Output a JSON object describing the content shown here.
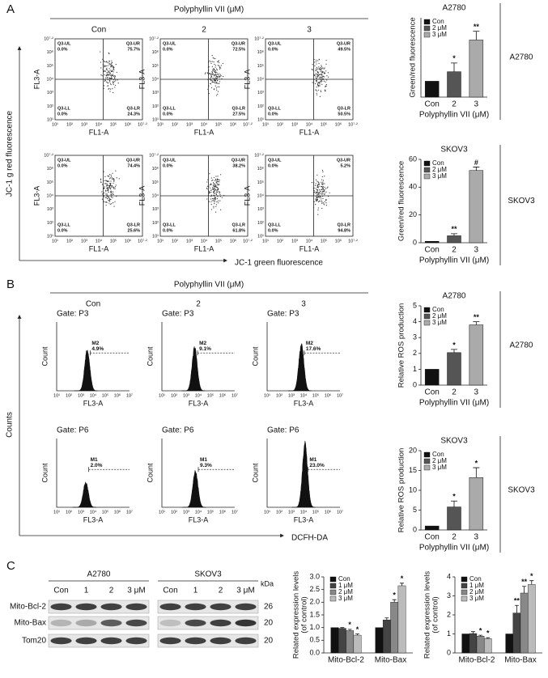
{
  "panel_a": {
    "label": "A",
    "header": "Polyphyllin VII (μM)",
    "columns": [
      "Con",
      "2",
      "3"
    ],
    "y_title": "JC-1 g red fluorescence",
    "x_title": "JC-1 green fluorescence",
    "x_axis_label": "FL1-A",
    "y_axis_label": "FL3-A",
    "axis_ticks": [
      "10¹",
      "10²",
      "10³",
      "10⁴",
      "10⁵",
      "10⁶",
      "10⁷·²"
    ],
    "quadrant_names": [
      "Q3-UL",
      "Q3-UR",
      "Q3-LL",
      "Q3-LR"
    ],
    "plots": [
      {
        "quadrants": [
          "0.0%",
          "75.7%",
          "0.0%",
          "24.3%"
        ]
      },
      {
        "quadrants": [
          "0.0%",
          "72.5%",
          "0.0%",
          "27.5%"
        ]
      },
      {
        "quadrants": [
          "0.0%",
          "49.5%",
          "0.0%",
          "50.5%"
        ]
      },
      {
        "quadrants": [
          "0.0%",
          "74.4%",
          "0.0%",
          "25.6%"
        ]
      },
      {
        "quadrants": [
          "0.0%",
          "38.2%",
          "0.0%",
          "61.8%"
        ]
      },
      {
        "quadrants": [
          "0.0%",
          "5.2%",
          "0.0%",
          "94.8%"
        ]
      }
    ],
    "charts": [
      {
        "type": "bar",
        "title": "A2780",
        "side_label": "A2780",
        "ylabel": [
          "Green/red fluorescence"
        ],
        "xlabel": "Polyphyllin VII (μM)",
        "categories": [
          "Con",
          "2",
          "3"
        ],
        "values": [
          1,
          1.6,
          3.6
        ],
        "errors": [
          null,
          0.55,
          0.55
        ],
        "significance": [
          null,
          "*",
          "**"
        ],
        "colors": [
          "#111111",
          "#555555",
          "#aaaaaa"
        ],
        "legend": [
          "Con",
          "2 μM",
          "3 μM"
        ],
        "ylim": [
          0,
          5
        ]
      },
      {
        "type": "bar",
        "title": "SKOV3",
        "side_label": "SKOV3",
        "ylabel": [
          "Green/red fluorescence"
        ],
        "xlabel": "Polyphyllin VII (μM)",
        "categories": [
          "Con",
          "2",
          "3"
        ],
        "values": [
          1,
          5,
          52
        ],
        "errors": [
          null,
          1.5,
          2.5
        ],
        "significance": [
          null,
          "**",
          "#"
        ],
        "colors": [
          "#111111",
          "#555555",
          "#aaaaaa"
        ],
        "legend": [
          "Con",
          "2 μM",
          "3 μM"
        ],
        "ylim": [
          0,
          60
        ],
        "yticks": [
          0,
          20,
          40,
          60
        ]
      }
    ]
  },
  "panel_b": {
    "label": "B",
    "header": "Polyphyllin VII (μM)",
    "columns": [
      "Con",
      "2",
      "3"
    ],
    "y_title": "Counts",
    "x_title": "DCFH-DA",
    "x_axis_label": "FL3-A",
    "y_axis_label": "Count",
    "axis_ticks": [
      "10¹",
      "10²",
      "10³",
      "10⁴",
      "10⁵",
      "10⁶",
      "10⁷"
    ],
    "plots": [
      {
        "gate": "Gate: P3",
        "marker": "M2",
        "percent": "4.9%"
      },
      {
        "gate": "Gate: P3",
        "marker": "M2",
        "percent": "9.1%"
      },
      {
        "gate": "Gate: P3",
        "marker": "M2",
        "percent": "17.6%"
      },
      {
        "gate": "Gate: P6",
        "marker": "M1",
        "percent": "2.0%"
      },
      {
        "gate": "Gate: P6",
        "marker": "M1",
        "percent": "9.3%"
      },
      {
        "gate": "Gate: P6",
        "marker": "M1",
        "percent": "23.0%"
      }
    ],
    "charts": [
      {
        "type": "bar",
        "title": "A2780",
        "side_label": "A2780",
        "ylabel": [
          "Relative ROS production"
        ],
        "xlabel": "Polyphyllin VII (μM)",
        "categories": [
          "Con",
          "2",
          "3"
        ],
        "values": [
          1,
          2.05,
          3.8
        ],
        "errors": [
          null,
          0.2,
          0.2
        ],
        "significance": [
          null,
          "*",
          "**"
        ],
        "colors": [
          "#111111",
          "#555555",
          "#aaaaaa"
        ],
        "legend": [
          "Con",
          "2 μM",
          "3 μM"
        ],
        "ylim": [
          0,
          5
        ],
        "yticks": [
          0,
          1,
          2,
          3,
          4,
          5
        ]
      },
      {
        "type": "bar",
        "title": "SKOV3",
        "side_label": "SKOV3",
        "ylabel": [
          "Relative ROS production"
        ],
        "xlabel": "Polyphyllin VII (μM)",
        "categories": [
          "Con",
          "2",
          "3"
        ],
        "values": [
          1,
          5.8,
          13.2
        ],
        "errors": [
          null,
          1.5,
          2.5
        ],
        "significance": [
          null,
          "*",
          "*"
        ],
        "colors": [
          "#111111",
          "#555555",
          "#aaaaaa"
        ],
        "legend": [
          "Con",
          "2 μM",
          "3 μM"
        ],
        "ylim": [
          0,
          20
        ],
        "yticks": [
          0,
          5,
          10,
          15,
          20
        ]
      }
    ]
  },
  "panel_c": {
    "label": "C",
    "blots": [
      {
        "title": "A2780",
        "lanes": [
          "Con",
          "1",
          "2",
          "3 μM"
        ]
      },
      {
        "title": "SKOV3",
        "lanes": [
          "Con",
          "1",
          "2",
          "3 μM"
        ]
      }
    ],
    "kda_label": "kDa",
    "proteins": [
      {
        "name": "Mito-Bcl-2",
        "kda": 26
      },
      {
        "name": "Mito-Bax",
        "kda": 20
      },
      {
        "name": "Tom20",
        "kda": 20
      }
    ],
    "charts": [
      {
        "type": "grouped_bar",
        "ylabel": [
          "Related expression levels",
          "(of control)"
        ],
        "categories": [
          "Mito-Bcl-2",
          "Mito-Bax"
        ],
        "series": [
          {
            "name": "Con",
            "color": "#111111",
            "values": [
              1,
              1
            ],
            "errors": [
              null,
              null
            ],
            "significance": [
              null,
              null
            ]
          },
          {
            "name": "1 μM",
            "color": "#444444",
            "values": [
              0.97,
              1.3
            ],
            "errors": [
              0.03,
              0.08
            ],
            "significance": [
              null,
              null
            ]
          },
          {
            "name": "2 μM",
            "color": "#888888",
            "values": [
              0.88,
              2.0
            ],
            "errors": [
              0.05,
              0.1
            ],
            "significance": [
              "*",
              "*"
            ]
          },
          {
            "name": "3 μM",
            "color": "#bbbbbb",
            "values": [
              0.7,
              2.65
            ],
            "errors": [
              0.05,
              0.1
            ],
            "significance": [
              "*",
              "*"
            ]
          }
        ],
        "ylim": [
          0,
          3
        ],
        "yticks": [
          {
            "value": 0,
            "label": "0.0"
          },
          {
            "value": 0.5,
            "label": "0.5"
          },
          {
            "value": 1,
            "label": "1.0"
          },
          {
            "value": 1.5,
            "label": "1.5"
          },
          {
            "value": 2,
            "label": "2.0"
          },
          {
            "value": 2.5,
            "label": "2.5"
          },
          {
            "value": 3,
            "label": "3.0"
          }
        ]
      },
      {
        "type": "grouped_bar",
        "ylabel": [
          "Related expression levels",
          "(of control)"
        ],
        "categories": [
          "Mito-Bcl-2",
          "Mito-Bax"
        ],
        "series": [
          {
            "name": "Con",
            "color": "#111111",
            "values": [
              1,
              1
            ],
            "errors": [
              null,
              null
            ],
            "significance": [
              null,
              null
            ]
          },
          {
            "name": "1 μM",
            "color": "#444444",
            "values": [
              1.02,
              2.1
            ],
            "errors": [
              0.1,
              0.4
            ],
            "significance": [
              null,
              "**"
            ]
          },
          {
            "name": "2 μM",
            "color": "#888888",
            "values": [
              0.88,
              3.15
            ],
            "errors": [
              0.05,
              0.35
            ],
            "significance": [
              "*",
              "**"
            ]
          },
          {
            "name": "3 μM",
            "color": "#bbbbbb",
            "values": [
              0.75,
              3.6
            ],
            "errors": [
              0.05,
              0.2
            ],
            "significance": [
              "*",
              "*"
            ]
          }
        ],
        "ylim": [
          0,
          4
        ],
        "yticks": [
          0,
          1,
          2,
          3,
          4
        ]
      }
    ]
  }
}
